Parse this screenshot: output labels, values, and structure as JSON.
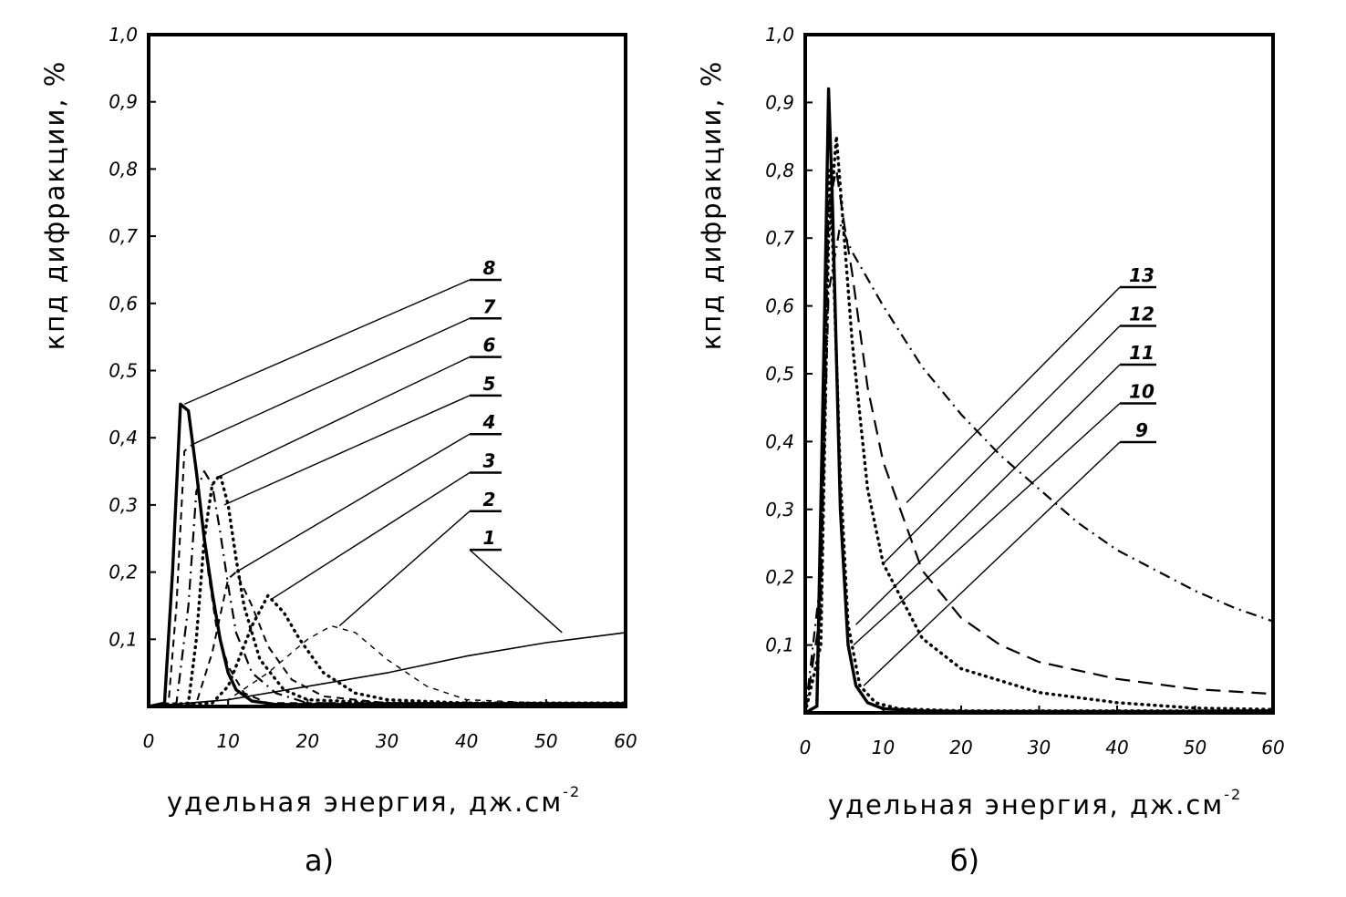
{
  "chart_data": [
    {
      "type": "line",
      "panel_label": "а)",
      "xlabel": "удельная энергия, дж.см",
      "xlabel_superscript": "-2",
      "ylabel": "кпд дифракции, %",
      "xlim": [
        0,
        60
      ],
      "ylim": [
        0,
        1.0
      ],
      "x_ticks": [
        0,
        10,
        20,
        30,
        40,
        50,
        60
      ],
      "x_tick_labels": [
        "0",
        "10",
        "20",
        "30",
        "40",
        "50",
        "60"
      ],
      "y_ticks": [
        0.1,
        0.2,
        0.3,
        0.4,
        0.5,
        0.6,
        0.7,
        0.8,
        0.9,
        1.0
      ],
      "y_tick_labels": [
        "0,1",
        "0,2",
        "0,3",
        "0,4",
        "0,5",
        "0,6",
        "0,7",
        "0,8",
        "0,9",
        "1,0"
      ],
      "grid": false,
      "series": [
        {
          "name": "1",
          "style": "solid-thin",
          "x": [
            0,
            10,
            20,
            30,
            40,
            50,
            60
          ],
          "y": [
            0,
            0.01,
            0.03,
            0.05,
            0.075,
            0.095,
            0.11
          ]
        },
        {
          "name": "2",
          "style": "dashed-thin",
          "x": [
            0,
            10,
            15,
            20,
            23,
            26,
            30,
            35,
            40,
            50,
            60
          ],
          "y": [
            0,
            0.01,
            0.05,
            0.1,
            0.12,
            0.11,
            0.07,
            0.03,
            0.01,
            0.005,
            0.005
          ]
        },
        {
          "name": "3",
          "style": "dotted-bold",
          "x": [
            0,
            8,
            10,
            13,
            15,
            17,
            19,
            22,
            26,
            30,
            40,
            60
          ],
          "y": [
            0,
            0.005,
            0.03,
            0.12,
            0.165,
            0.14,
            0.1,
            0.05,
            0.02,
            0.01,
            0.005,
            0.005
          ]
        },
        {
          "name": "4",
          "style": "dashed",
          "x": [
            0,
            6,
            8,
            10,
            11,
            13,
            15,
            18,
            22,
            30,
            60
          ],
          "y": [
            0,
            0.005,
            0.08,
            0.19,
            0.2,
            0.15,
            0.09,
            0.04,
            0.015,
            0.005,
            0.005
          ]
        },
        {
          "name": "5",
          "style": "dotted-bold",
          "x": [
            0,
            5,
            6,
            7,
            8,
            9,
            10,
            11,
            12,
            14,
            17,
            20,
            30,
            60
          ],
          "y": [
            0,
            0.005,
            0.1,
            0.25,
            0.33,
            0.345,
            0.3,
            0.22,
            0.15,
            0.07,
            0.025,
            0.01,
            0.005,
            0.005
          ]
        },
        {
          "name": "6",
          "style": "dash-dot",
          "x": [
            0,
            3.5,
            5,
            6,
            7,
            8,
            9,
            10,
            11,
            13,
            16,
            20,
            60
          ],
          "y": [
            0,
            0.005,
            0.15,
            0.32,
            0.35,
            0.33,
            0.26,
            0.18,
            0.11,
            0.05,
            0.02,
            0.005,
            0.005
          ]
        },
        {
          "name": "7",
          "style": "dashed",
          "x": [
            0,
            2.5,
            3.5,
            4.5,
            5.5,
            6.5,
            7.5,
            8.5,
            10,
            12,
            15,
            60
          ],
          "y": [
            0,
            0.005,
            0.15,
            0.38,
            0.39,
            0.3,
            0.2,
            0.12,
            0.06,
            0.02,
            0.005,
            0.005
          ]
        },
        {
          "name": "8",
          "style": "solid-bold",
          "x": [
            0,
            2,
            3,
            4,
            5,
            6,
            7,
            8,
            9,
            10,
            11,
            13,
            16,
            60
          ],
          "y": [
            0,
            0.005,
            0.2,
            0.45,
            0.44,
            0.35,
            0.25,
            0.17,
            0.1,
            0.05,
            0.025,
            0.008,
            0.003,
            0.003
          ]
        }
      ],
      "curve_labels": [
        "8",
        "7",
        "6",
        "5",
        "4",
        "3",
        "2",
        "1"
      ]
    },
    {
      "type": "line",
      "panel_label": "б)",
      "xlabel": "удельная энергия, дж.см",
      "xlabel_superscript": "-2",
      "ylabel": "кпд дифракции, %",
      "xlim": [
        0,
        60
      ],
      "ylim": [
        0,
        1.0
      ],
      "x_ticks": [
        0,
        10,
        20,
        30,
        40,
        50,
        60
      ],
      "x_tick_labels": [
        "0",
        "10",
        "20",
        "30",
        "40",
        "50",
        "60"
      ],
      "y_ticks": [
        0.1,
        0.2,
        0.3,
        0.4,
        0.5,
        0.6,
        0.7,
        0.8,
        0.9,
        1.0
      ],
      "y_tick_labels": [
        "0,1",
        "0,2",
        "0,3",
        "0,4",
        "0,5",
        "0,6",
        "0,7",
        "0,8",
        "0,9",
        "1,0"
      ],
      "grid": false,
      "series": [
        {
          "name": "9",
          "style": "solid-bold",
          "x": [
            0,
            1.5,
            2.5,
            3,
            3.5,
            4.5,
            5.5,
            6.5,
            8,
            10,
            15,
            20,
            60
          ],
          "y": [
            0,
            0.01,
            0.6,
            0.92,
            0.75,
            0.3,
            0.1,
            0.04,
            0.015,
            0.006,
            0.003,
            0.002,
            0.002
          ]
        },
        {
          "name": "10",
          "style": "dotted-bold",
          "x": [
            0,
            1.5,
            2.5,
            3,
            3.5,
            4.5,
            5.5,
            7,
            9,
            12,
            20,
            60
          ],
          "y": [
            0,
            0.01,
            0.5,
            0.8,
            0.7,
            0.35,
            0.13,
            0.04,
            0.015,
            0.006,
            0.003,
            0.003
          ]
        },
        {
          "name": "11",
          "style": "dotted-bold",
          "x": [
            0,
            2,
            3,
            4,
            5,
            6,
            8,
            10,
            15,
            20,
            30,
            40,
            50,
            60
          ],
          "y": [
            0,
            0.1,
            0.7,
            0.85,
            0.7,
            0.55,
            0.33,
            0.22,
            0.11,
            0.065,
            0.03,
            0.015,
            0.007,
            0.005
          ]
        },
        {
          "name": "12",
          "style": "long-dash",
          "x": [
            0,
            2,
            3,
            4,
            5,
            6,
            8,
            10,
            15,
            20,
            25,
            30,
            40,
            50,
            60
          ],
          "y": [
            0,
            0.15,
            0.75,
            0.8,
            0.72,
            0.65,
            0.48,
            0.37,
            0.21,
            0.14,
            0.1,
            0.075,
            0.05,
            0.035,
            0.028
          ]
        },
        {
          "name": "13",
          "style": "dash-dot",
          "x": [
            0,
            2,
            3,
            4.5,
            6,
            8,
            10,
            15,
            20,
            25,
            30,
            35,
            40,
            45,
            50,
            55,
            60
          ],
          "y": [
            0,
            0.2,
            0.62,
            0.72,
            0.68,
            0.64,
            0.6,
            0.51,
            0.44,
            0.38,
            0.33,
            0.28,
            0.24,
            0.21,
            0.18,
            0.155,
            0.135
          ]
        }
      ],
      "curve_labels": [
        "13",
        "12",
        "11",
        "10",
        "9"
      ]
    }
  ]
}
